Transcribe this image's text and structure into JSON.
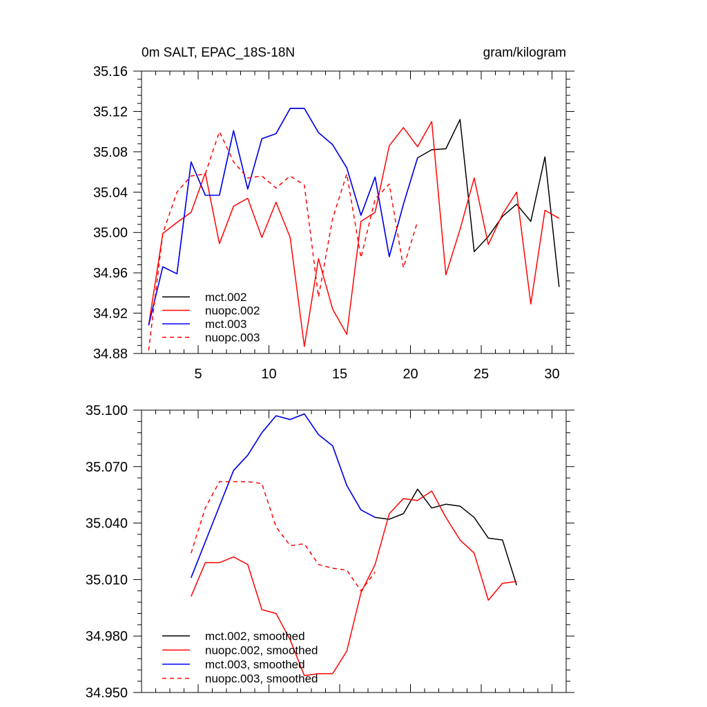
{
  "chart_data": [
    {
      "type": "line",
      "title_left": "0m SALT, EPAC_18S-18N",
      "title_right": "gram/kilogram",
      "xlim": [
        1,
        31
      ],
      "ylim": [
        34.88,
        35.16
      ],
      "xticks": [
        5,
        10,
        15,
        20,
        25,
        30
      ],
      "xtick_labels": [
        "5",
        "10",
        "15",
        "20",
        "25",
        "30"
      ],
      "yticks": [
        34.88,
        34.92,
        34.96,
        35.0,
        35.04,
        35.08,
        35.12,
        35.16
      ],
      "ytick_labels": [
        "34.88",
        "34.92",
        "34.96",
        "35.00",
        "35.04",
        "35.08",
        "35.12",
        "35.16"
      ],
      "legend_position": "bottom-left",
      "series": [
        {
          "name": "mct.002",
          "color": "#000000",
          "dash": "solid",
          "x": [
            1.5,
            2.5,
            3.5,
            4.5,
            5.5,
            6.5,
            7.5,
            8.5,
            9.5,
            10.5,
            11.5,
            12.5,
            13.5,
            14.5,
            15.5,
            16.5,
            17.5,
            18.5,
            19.5,
            20.5,
            21.5,
            22.5,
            23.5,
            24.5,
            25.5,
            26.5,
            27.5,
            28.5,
            29.5,
            30.5
          ],
          "values": [
            34.908,
            34.966,
            34.959,
            35.07,
            35.037,
            35.037,
            35.101,
            35.043,
            35.093,
            35.098,
            35.123,
            35.123,
            35.099,
            35.087,
            35.064,
            35.017,
            35.055,
            34.976,
            35.028,
            35.074,
            35.082,
            35.083,
            35.112,
            34.981,
            34.996,
            35.016,
            35.028,
            35.011,
            35.075,
            34.946
          ]
        },
        {
          "name": "nuopc.002",
          "color": "#ff0000",
          "dash": "solid",
          "x": [
            1.5,
            2.5,
            3.5,
            4.5,
            5.5,
            6.5,
            7.5,
            8.5,
            9.5,
            10.5,
            11.5,
            12.5,
            13.5,
            14.5,
            15.5,
            16.5,
            17.5,
            18.5,
            19.5,
            20.5,
            21.5,
            22.5,
            23.5,
            24.5,
            25.5,
            26.5,
            27.5,
            28.5,
            29.5,
            30.5
          ],
          "values": [
            34.908,
            34.999,
            35.01,
            35.02,
            35.059,
            34.989,
            35.026,
            35.034,
            34.995,
            35.03,
            34.995,
            34.887,
            34.974,
            34.924,
            34.899,
            35.011,
            35.02,
            35.086,
            35.104,
            35.085,
            35.11,
            34.958,
            35.003,
            35.054,
            34.988,
            35.018,
            35.04,
            34.929,
            35.022,
            35.014
          ]
        },
        {
          "name": "mct.003",
          "color": "#0000ff",
          "dash": "solid",
          "x": [
            1.5,
            2.5,
            3.5,
            4.5,
            5.5,
            6.5,
            7.5,
            8.5,
            9.5,
            10.5,
            11.5,
            12.5,
            13.5,
            14.5,
            15.5,
            16.5,
            17.5,
            18.5,
            19.5,
            20.5
          ],
          "values": [
            34.908,
            34.966,
            34.959,
            35.07,
            35.037,
            35.037,
            35.101,
            35.043,
            35.093,
            35.098,
            35.123,
            35.123,
            35.099,
            35.087,
            35.064,
            35.017,
            35.055,
            34.976,
            35.028,
            35.074
          ]
        },
        {
          "name": "nuopc.003",
          "color": "#ff0000",
          "dash": "dashed",
          "x": [
            1.5,
            2.5,
            3.5,
            4.5,
            5.5,
            6.5,
            7.5,
            8.5,
            9.5,
            10.5,
            11.5,
            12.5,
            13.5,
            14.5,
            15.5,
            16.5,
            17.5,
            18.5,
            19.5,
            20.5
          ],
          "values": [
            34.883,
            34.999,
            35.04,
            35.056,
            35.058,
            35.1,
            35.07,
            35.054,
            35.056,
            35.044,
            35.056,
            35.047,
            34.936,
            35.014,
            35.058,
            34.975,
            35.033,
            35.048,
            34.965,
            35.011
          ]
        }
      ]
    },
    {
      "type": "line",
      "xlim": [
        1,
        31
      ],
      "ylim": [
        34.95,
        35.1
      ],
      "xticks": [
        5,
        10,
        15,
        20,
        25,
        30
      ],
      "yticks": [
        34.95,
        34.98,
        35.01,
        35.04,
        35.07,
        35.1
      ],
      "ytick_labels": [
        "34.950",
        "34.980",
        "35.010",
        "35.040",
        "35.070",
        "35.100"
      ],
      "legend_position": "bottom-left",
      "series": [
        {
          "name": "mct.002, smoothed",
          "color": "#000000",
          "dash": "solid",
          "x": [
            4.5,
            5.5,
            6.5,
            7.5,
            8.5,
            9.5,
            10.5,
            11.5,
            12.5,
            13.5,
            14.5,
            15.5,
            16.5,
            17.5,
            18.5,
            19.5,
            20.5,
            21.5,
            22.5,
            23.5,
            24.5,
            25.5,
            26.5,
            27.5
          ],
          "values": [
            35.011,
            35.03,
            35.049,
            35.068,
            35.076,
            35.088,
            35.097,
            35.095,
            35.098,
            35.087,
            35.081,
            35.06,
            35.047,
            35.043,
            35.042,
            35.045,
            35.058,
            35.048,
            35.05,
            35.049,
            35.043,
            35.032,
            35.031,
            35.007
          ]
        },
        {
          "name": "nuopc.002, smoothed",
          "color": "#ff0000",
          "dash": "solid",
          "x": [
            4.5,
            5.5,
            6.5,
            7.5,
            8.5,
            9.5,
            10.5,
            11.5,
            12.5,
            13.5,
            14.5,
            15.5,
            16.5,
            17.5,
            18.5,
            19.5,
            20.5,
            21.5,
            22.5,
            23.5,
            24.5,
            25.5,
            26.5,
            27.5
          ],
          "values": [
            35.001,
            35.019,
            35.019,
            35.022,
            35.018,
            34.994,
            34.992,
            34.978,
            34.959,
            34.96,
            34.96,
            34.972,
            35.003,
            35.018,
            35.045,
            35.053,
            35.052,
            35.057,
            35.043,
            35.031,
            35.024,
            34.999,
            35.008,
            35.009
          ]
        },
        {
          "name": "mct.003, smoothed",
          "color": "#0000ff",
          "dash": "solid",
          "x": [
            4.5,
            5.5,
            6.5,
            7.5,
            8.5,
            9.5,
            10.5,
            11.5,
            12.5,
            13.5,
            14.5,
            15.5,
            16.5,
            17.5
          ],
          "values": [
            35.011,
            35.03,
            35.049,
            35.068,
            35.076,
            35.088,
            35.097,
            35.095,
            35.098,
            35.087,
            35.081,
            35.06,
            35.047,
            35.043
          ]
        },
        {
          "name": "nuopc.003, smoothed",
          "color": "#ff0000",
          "dash": "dashed",
          "x": [
            4.5,
            5.5,
            6.5,
            7.5,
            8.5,
            9.5,
            10.5,
            11.5,
            12.5,
            13.5,
            14.5,
            15.5,
            16.5,
            17.5
          ],
          "values": [
            35.024,
            35.048,
            35.062,
            35.062,
            35.062,
            35.061,
            35.038,
            35.028,
            35.029,
            35.018,
            35.016,
            35.015,
            35.004,
            35.014
          ]
        }
      ]
    }
  ]
}
